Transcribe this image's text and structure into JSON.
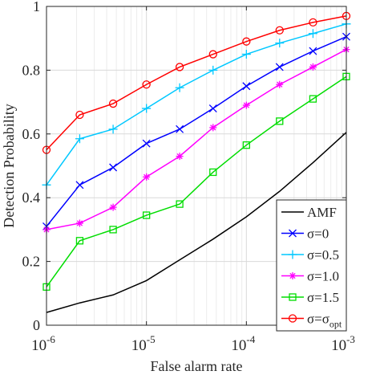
{
  "chart_data": {
    "type": "line",
    "xlabel": "False alarm rate",
    "ylabel": "Detection Probability",
    "xscale": "log",
    "xlim_exp": [
      -6,
      -3
    ],
    "ylim": [
      0,
      1
    ],
    "x_tick_base": "10",
    "x_tick_exponents": [
      "-6",
      "-5",
      "-4",
      "-3"
    ],
    "y_ticks": [
      "0",
      "0.2",
      "0.4",
      "0.6",
      "0.8",
      "1"
    ],
    "grid": true,
    "legend_position": "bottom-right",
    "x": [
      1e-06,
      2.15e-06,
      4.64e-06,
      1e-05,
      2.15e-05,
      4.64e-05,
      0.0001,
      0.000215,
      0.000464,
      0.001
    ],
    "series": [
      {
        "label_text": "AMF",
        "color": "#000000",
        "marker": "none",
        "values": [
          0.04,
          0.07,
          0.095,
          0.14,
          0.205,
          0.27,
          0.34,
          0.42,
          0.51,
          0.605
        ]
      },
      {
        "label_text": "σ=0",
        "color": "#0000ff",
        "marker": "x",
        "values": [
          0.31,
          0.44,
          0.495,
          0.57,
          0.615,
          0.68,
          0.75,
          0.81,
          0.86,
          0.905
        ]
      },
      {
        "label_text": "σ=0.5",
        "color": "#00c8ff",
        "marker": "plus",
        "values": [
          0.44,
          0.585,
          0.615,
          0.68,
          0.745,
          0.8,
          0.85,
          0.885,
          0.915,
          0.945
        ]
      },
      {
        "label_text": "σ=1.0",
        "color": "#ff00ff",
        "marker": "asterisk",
        "values": [
          0.3,
          0.32,
          0.37,
          0.465,
          0.53,
          0.62,
          0.69,
          0.755,
          0.81,
          0.865
        ]
      },
      {
        "label_text": "σ=1.5",
        "color": "#00dd00",
        "marker": "square",
        "values": [
          0.12,
          0.265,
          0.3,
          0.345,
          0.38,
          0.48,
          0.565,
          0.64,
          0.71,
          0.78
        ]
      },
      {
        "label_text": "σ=σ",
        "label_sub": "opt",
        "color": "#ff0000",
        "marker": "circle",
        "values": [
          0.55,
          0.66,
          0.695,
          0.755,
          0.81,
          0.85,
          0.89,
          0.925,
          0.95,
          0.97
        ]
      }
    ]
  }
}
